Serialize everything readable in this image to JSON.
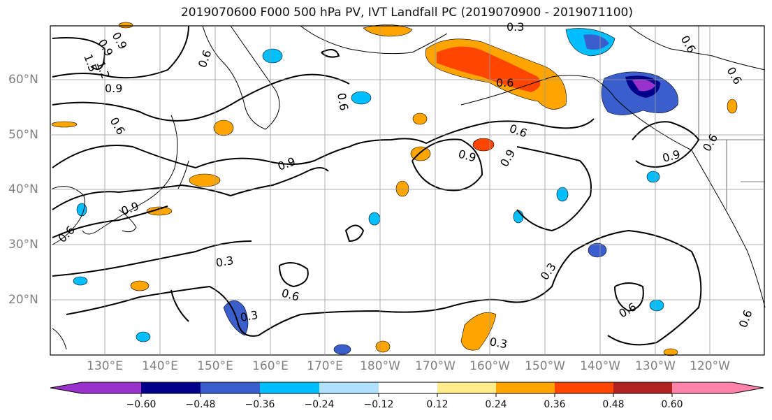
{
  "title": "2019070600 F000 500 hPa PV, IVT Landfall PC (2019070900 - 2019071100)",
  "lat_labels": [
    "60°N",
    "50°N",
    "40°N",
    "30°N",
    "20°N"
  ],
  "lon_labels": [
    "130°E",
    "140°E",
    "150°E",
    "160°E",
    "170°E",
    "180°W",
    "170°W",
    "160°W",
    "150°W",
    "140°W",
    "130°W",
    "120°W"
  ],
  "contour_labels": [
    "0.9",
    "1.5",
    "1.2",
    "0.6",
    "0.9",
    "0.6",
    "0.6",
    "0.3",
    "0.6",
    "0.6",
    "0.9",
    "0.9",
    "0.9",
    "0.9",
    "0.6",
    "0.9",
    "0.6",
    "0.6",
    "0.3",
    "0.6",
    "0.3",
    "0.3",
    "0.3",
    "0.6",
    "0.6",
    "0.9",
    "0.6"
  ],
  "colorbar": {
    "ticks": [
      "−0.60",
      "−0.48",
      "−0.36",
      "−0.24",
      "−0.12",
      "0.12",
      "0.24",
      "0.36",
      "0.48",
      "0.60"
    ],
    "colors": [
      "#9932cc",
      "#00008b",
      "#3a5fcd",
      "#00bfff",
      "#b0e2ff",
      "#ffffff",
      "#ffec8b",
      "#ffa500",
      "#ff4500",
      "#b22222",
      "#ff82ab"
    ]
  },
  "map_data": {
    "lat_range": [
      10,
      70
    ],
    "lon_range_east": [
      120,
      250
    ],
    "gridline_lats": [
      60,
      50,
      40,
      30,
      20
    ],
    "gridline_lons_east": [
      130,
      140,
      150,
      160,
      170,
      180,
      190,
      200,
      210,
      220,
      230,
      240
    ]
  }
}
